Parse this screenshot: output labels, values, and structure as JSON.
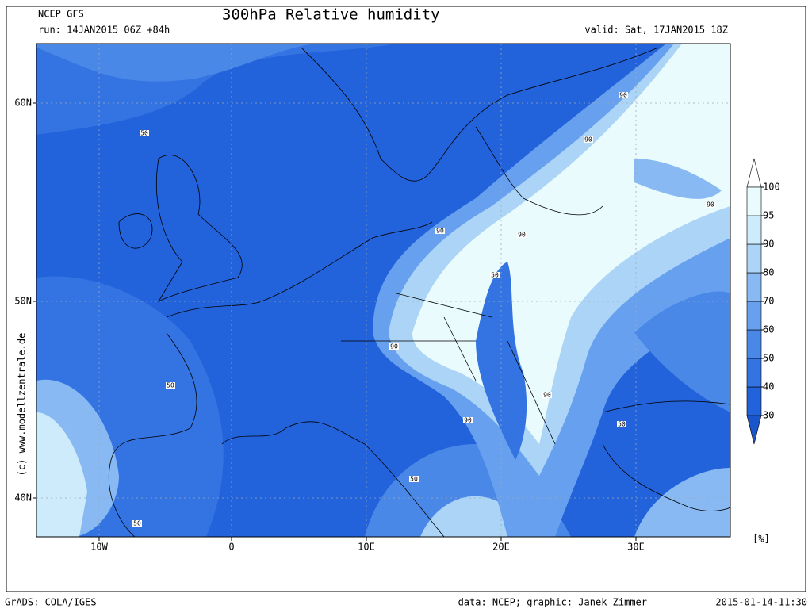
{
  "header": {
    "model": "NCEP GFS",
    "title": "300hPa Relative humidity",
    "run": "run: 14JAN2015 06Z +84h",
    "valid": "valid: Sat, 17JAN2015 18Z"
  },
  "map": {
    "lat_labels": [
      "60N",
      "50N",
      "40N"
    ],
    "lon_labels": [
      "10W",
      "0",
      "10E",
      "20E",
      "30E"
    ],
    "contour_labels": [
      "50",
      "90",
      "50",
      "90",
      "50",
      "90",
      "90",
      "90",
      "90",
      "50",
      "50",
      "90",
      "50",
      "90"
    ]
  },
  "colorbar": {
    "ticks": [
      30,
      40,
      50,
      60,
      70,
      80,
      90,
      95,
      100
    ],
    "colors": [
      "#2262da",
      "#3473e2",
      "#4a88e8",
      "#66a0ee",
      "#88b9f2",
      "#acd4f6",
      "#cdebfa",
      "#e9fbfd"
    ],
    "under_color": "#1a55cc",
    "over_color": "#ffffff",
    "unit": "[%]"
  },
  "credit": "(c) www.modellzentrale.de",
  "footer": {
    "left": "GrADS: COLA/IGES",
    "center": "data: NCEP; graphic: Janek Zimmer",
    "right": "2015-01-14-11:30"
  }
}
